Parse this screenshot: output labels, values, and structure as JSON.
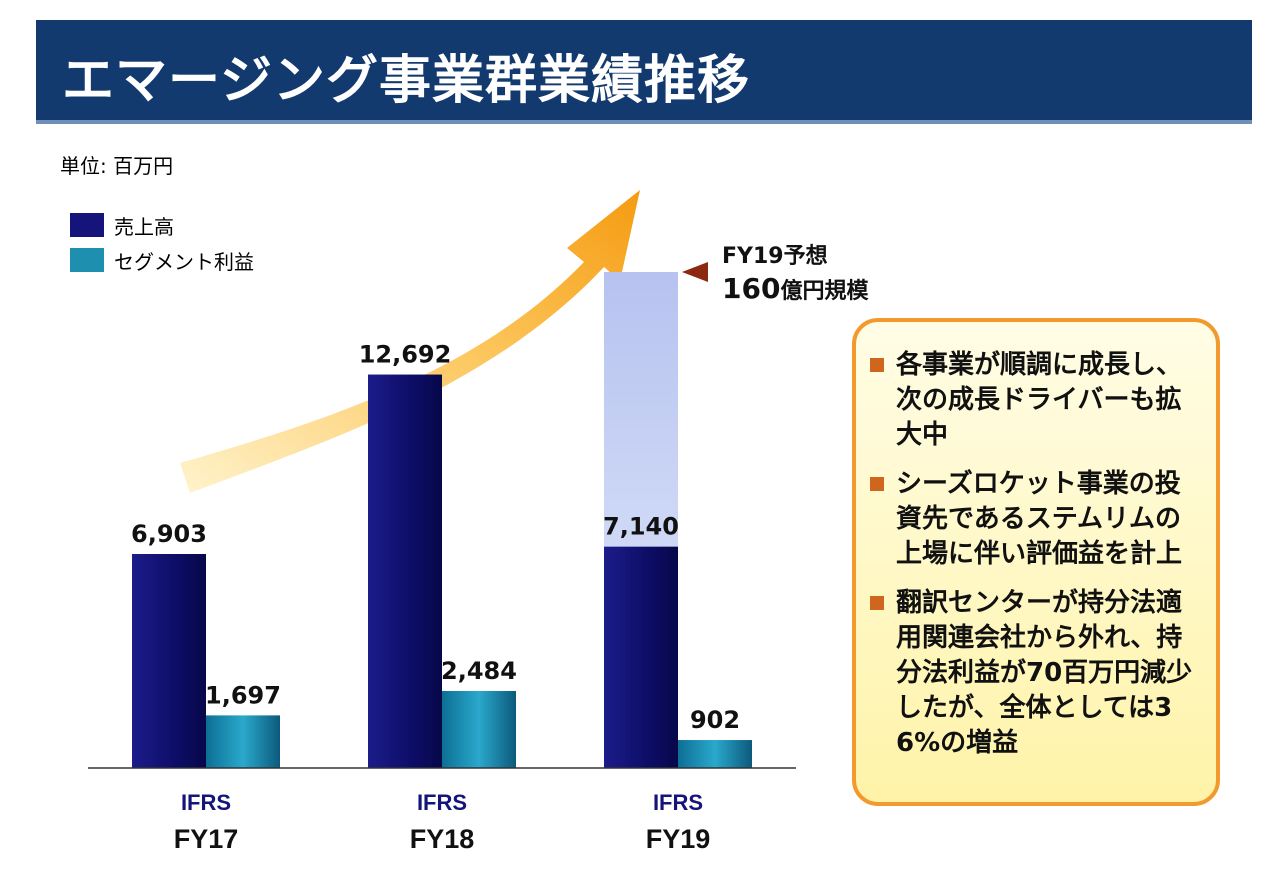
{
  "header": {
    "title": "エマージング事業群業績推移"
  },
  "unit_label": "単位: 百万円",
  "legend": [
    {
      "label": "売上高",
      "color": "#14147a"
    },
    {
      "label": "セグメント利益",
      "color": "#1f8fb0"
    }
  ],
  "forecast": {
    "line1": "FY19予想",
    "line2_number": "160",
    "line2_suffix": "億円規模"
  },
  "notes": [
    "各事業が順調に成長し、次の成長ドライバーも拡大中",
    "シーズロケット事業の投資先であるステムリムの上場に伴い評価益を計上",
    "翻訳センターが持分法適用関連会社から外れ、持分法利益が70百万円減少したが、全体としては36%の増益"
  ],
  "colors": {
    "header_bg": "#123a6e",
    "arrow": "#f6a21e",
    "forecast_bar": "#c9d4f4",
    "note_border": "#f29a2e",
    "bullet": "#d0651d",
    "axis_label_standard": "#14147a"
  },
  "chart_data": {
    "type": "bar",
    "title": "エマージング事業群業績推移",
    "unit": "百万円",
    "categories": [
      "FY17",
      "FY18",
      "FY19"
    ],
    "standards": [
      "IFRS",
      "IFRS",
      "IFRS"
    ],
    "series": [
      {
        "name": "売上高",
        "values": [
          6903,
          12692,
          7140
        ],
        "labels": [
          "6,903",
          "12,692",
          "7,140"
        ]
      },
      {
        "name": "セグメント利益",
        "values": [
          1697,
          2484,
          902
        ],
        "labels": [
          "1,697",
          "2,484",
          "902"
        ]
      }
    ],
    "forecast": {
      "category": "FY19",
      "series": "売上高",
      "value": 16000,
      "label": "FY19予想 160億円規模"
    },
    "ylim": [
      0,
      16000
    ],
    "grid": false,
    "legend_position": "top-left"
  }
}
